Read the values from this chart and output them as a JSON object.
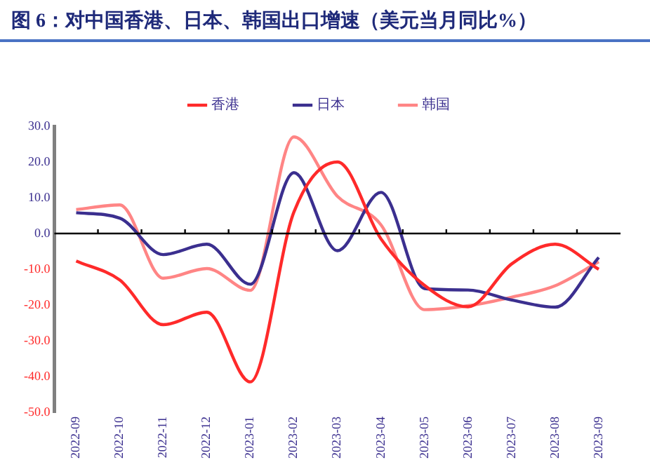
{
  "chart_data": {
    "type": "line",
    "title": "图 6：对中国香港、日本、韩国出口增速（美元当月同比%）",
    "categories": [
      "2022-09",
      "2022-10",
      "2022-11",
      "2022-12",
      "2023-01",
      "2023-02",
      "2023-03",
      "2023-04",
      "2023-05",
      "2023-06",
      "2023-07",
      "2023-08",
      "2023-09"
    ],
    "series": [
      {
        "name": "香港",
        "color": "#ff2a2a",
        "values": [
          -7.7,
          -13,
          -25.5,
          -22,
          -41.5,
          6,
          20,
          -1.5,
          -14.5,
          -20.5,
          -8.5,
          -3,
          -10
        ]
      },
      {
        "name": "日本",
        "color": "#3b2f8f",
        "values": [
          5.8,
          4.3,
          -5.9,
          -3,
          -14.2,
          17,
          -4.8,
          11.5,
          -15.4,
          -15.8,
          -18.6,
          -20.6,
          -6.7
        ]
      },
      {
        "name": "韩国",
        "color": "#ff8585",
        "values": [
          6.7,
          8,
          -12.5,
          -9.8,
          -15.9,
          27,
          10.4,
          2.4,
          -21.3,
          -20.2,
          -17.8,
          -14.6,
          -7.9
        ]
      }
    ],
    "ylim": [
      -50,
      30
    ],
    "yticks": [
      {
        "value": -50,
        "label": "-50.0"
      },
      {
        "value": -40,
        "label": "-40.0"
      },
      {
        "value": -30,
        "label": "-30.0"
      },
      {
        "value": -20,
        "label": "-20.0"
      },
      {
        "value": -10,
        "label": "-10.0"
      },
      {
        "value": 0,
        "label": "0.0"
      },
      {
        "value": 10,
        "label": "10.0"
      },
      {
        "value": 20,
        "label": "20.0"
      },
      {
        "value": 30,
        "label": "30.0"
      }
    ],
    "ref_lines": [
      {
        "axis": "y",
        "value": 0,
        "color": "#000000"
      }
    ],
    "grid": false,
    "legend": "top",
    "marker": "none",
    "line_style": "solid"
  }
}
